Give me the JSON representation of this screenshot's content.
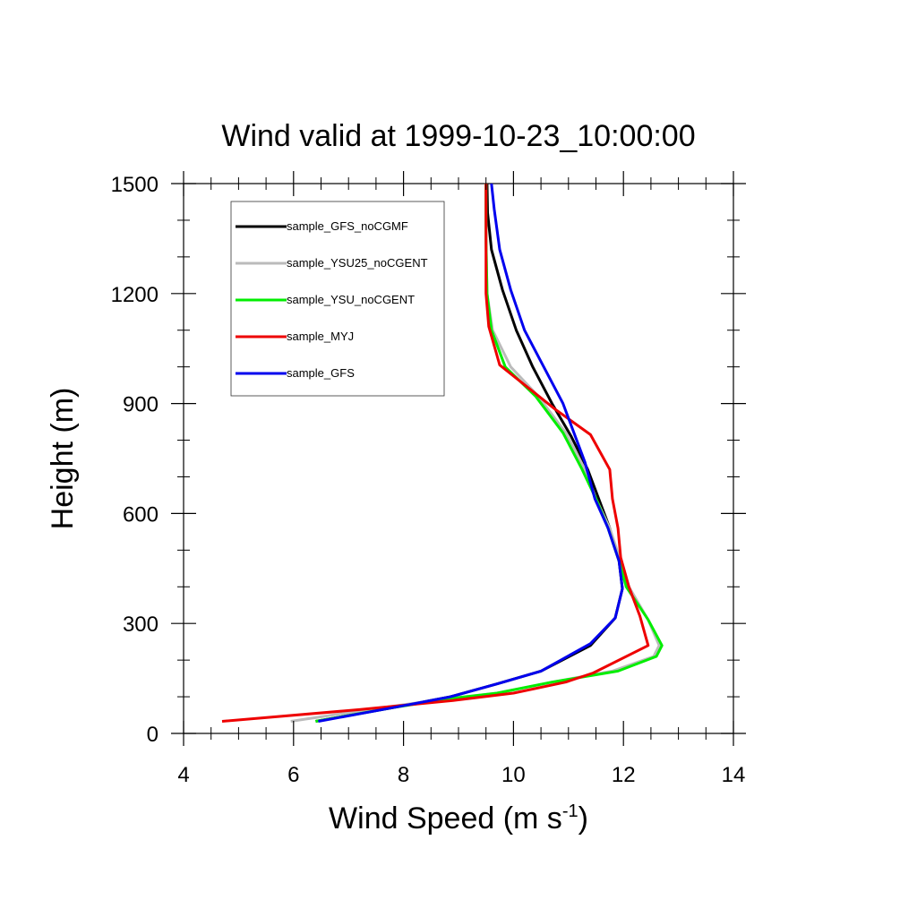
{
  "chart_data": {
    "type": "line",
    "title": "Wind valid at 1999-10-23_10:00:00",
    "xlabel": "Wind Speed (m s",
    "xlabel_superscript": "-1",
    "xlabel_suffix": ")",
    "ylabel": "Height (m)",
    "xlim": [
      4,
      14
    ],
    "ylim": [
      0,
      1500
    ],
    "x_ticks": [
      4,
      6,
      8,
      10,
      12,
      14
    ],
    "y_ticks": [
      0,
      300,
      600,
      900,
      1200,
      1500
    ],
    "x_tick_labels": [
      "4",
      "6",
      "8",
      "10",
      "12",
      "14"
    ],
    "y_tick_labels": [
      "0",
      "300",
      "600",
      "900",
      "1200",
      "1500"
    ],
    "legend_position": "top-left",
    "grid": false,
    "series": [
      {
        "name": "sample_GFS_noCGMF",
        "color": "#000000",
        "points": [
          [
            6.4,
            33
          ],
          [
            7.8,
            70
          ],
          [
            8.85,
            100
          ],
          [
            9.7,
            135
          ],
          [
            10.5,
            170
          ],
          [
            11.4,
            240
          ],
          [
            11.85,
            315
          ],
          [
            11.98,
            395
          ],
          [
            11.92,
            470
          ],
          [
            11.75,
            560
          ],
          [
            11.55,
            640
          ],
          [
            11.35,
            720
          ],
          [
            11.05,
            810
          ],
          [
            10.7,
            900
          ],
          [
            10.35,
            1000
          ],
          [
            10.05,
            1100
          ],
          [
            9.8,
            1210
          ],
          [
            9.6,
            1320
          ],
          [
            9.53,
            1420
          ],
          [
            9.52,
            1500
          ]
        ]
      },
      {
        "name": "sample_YSU25_noCGENT",
        "color": "#bbbbbb",
        "points": [
          [
            5.95,
            33
          ],
          [
            7.6,
            70
          ],
          [
            8.8,
            95
          ],
          [
            9.7,
            110
          ],
          [
            10.7,
            140
          ],
          [
            11.8,
            170
          ],
          [
            12.55,
            210
          ],
          [
            12.65,
            240
          ],
          [
            12.45,
            310
          ],
          [
            12.1,
            400
          ],
          [
            11.95,
            470
          ],
          [
            11.75,
            560
          ],
          [
            11.5,
            640
          ],
          [
            11.3,
            720
          ],
          [
            10.95,
            820
          ],
          [
            10.45,
            920
          ],
          [
            9.95,
            1000
          ],
          [
            9.62,
            1100
          ],
          [
            9.52,
            1200
          ],
          [
            9.5,
            1350
          ],
          [
            9.5,
            1500
          ]
        ]
      },
      {
        "name": "sample_YSU_noCGENT",
        "color": "#00ee00",
        "points": [
          [
            6.4,
            33
          ],
          [
            7.8,
            70
          ],
          [
            8.85,
            95
          ],
          [
            9.7,
            110
          ],
          [
            10.7,
            140
          ],
          [
            11.9,
            170
          ],
          [
            12.6,
            210
          ],
          [
            12.7,
            240
          ],
          [
            12.45,
            310
          ],
          [
            12.05,
            400
          ],
          [
            11.92,
            470
          ],
          [
            11.72,
            560
          ],
          [
            11.5,
            640
          ],
          [
            11.25,
            720
          ],
          [
            10.9,
            820
          ],
          [
            10.4,
            920
          ],
          [
            9.85,
            1000
          ],
          [
            9.6,
            1100
          ],
          [
            9.52,
            1200
          ],
          [
            9.5,
            1350
          ],
          [
            9.5,
            1500
          ]
        ]
      },
      {
        "name": "sample_MYJ",
        "color": "#ee0000",
        "points": [
          [
            4.7,
            33
          ],
          [
            7.2,
            65
          ],
          [
            8.9,
            90
          ],
          [
            10.0,
            110
          ],
          [
            10.95,
            140
          ],
          [
            11.45,
            165
          ],
          [
            12.45,
            240
          ],
          [
            12.3,
            320
          ],
          [
            12.1,
            400
          ],
          [
            11.95,
            480
          ],
          [
            11.9,
            560
          ],
          [
            11.8,
            640
          ],
          [
            11.75,
            720
          ],
          [
            11.4,
            815
          ],
          [
            10.75,
            885
          ],
          [
            9.75,
            1005
          ],
          [
            9.55,
            1110
          ],
          [
            9.5,
            1200
          ],
          [
            9.5,
            1350
          ],
          [
            9.5,
            1500
          ]
        ]
      },
      {
        "name": "sample_GFS",
        "color": "#0000ee",
        "points": [
          [
            6.45,
            33
          ],
          [
            7.8,
            70
          ],
          [
            8.85,
            100
          ],
          [
            9.7,
            135
          ],
          [
            10.5,
            170
          ],
          [
            11.4,
            245
          ],
          [
            11.85,
            315
          ],
          [
            11.98,
            395
          ],
          [
            11.92,
            470
          ],
          [
            11.72,
            560
          ],
          [
            11.48,
            640
          ],
          [
            11.3,
            740
          ],
          [
            11.1,
            820
          ],
          [
            10.9,
            900
          ],
          [
            10.55,
            1000
          ],
          [
            10.2,
            1100
          ],
          [
            9.95,
            1210
          ],
          [
            9.75,
            1320
          ],
          [
            9.65,
            1430
          ],
          [
            9.6,
            1500
          ]
        ]
      }
    ]
  }
}
